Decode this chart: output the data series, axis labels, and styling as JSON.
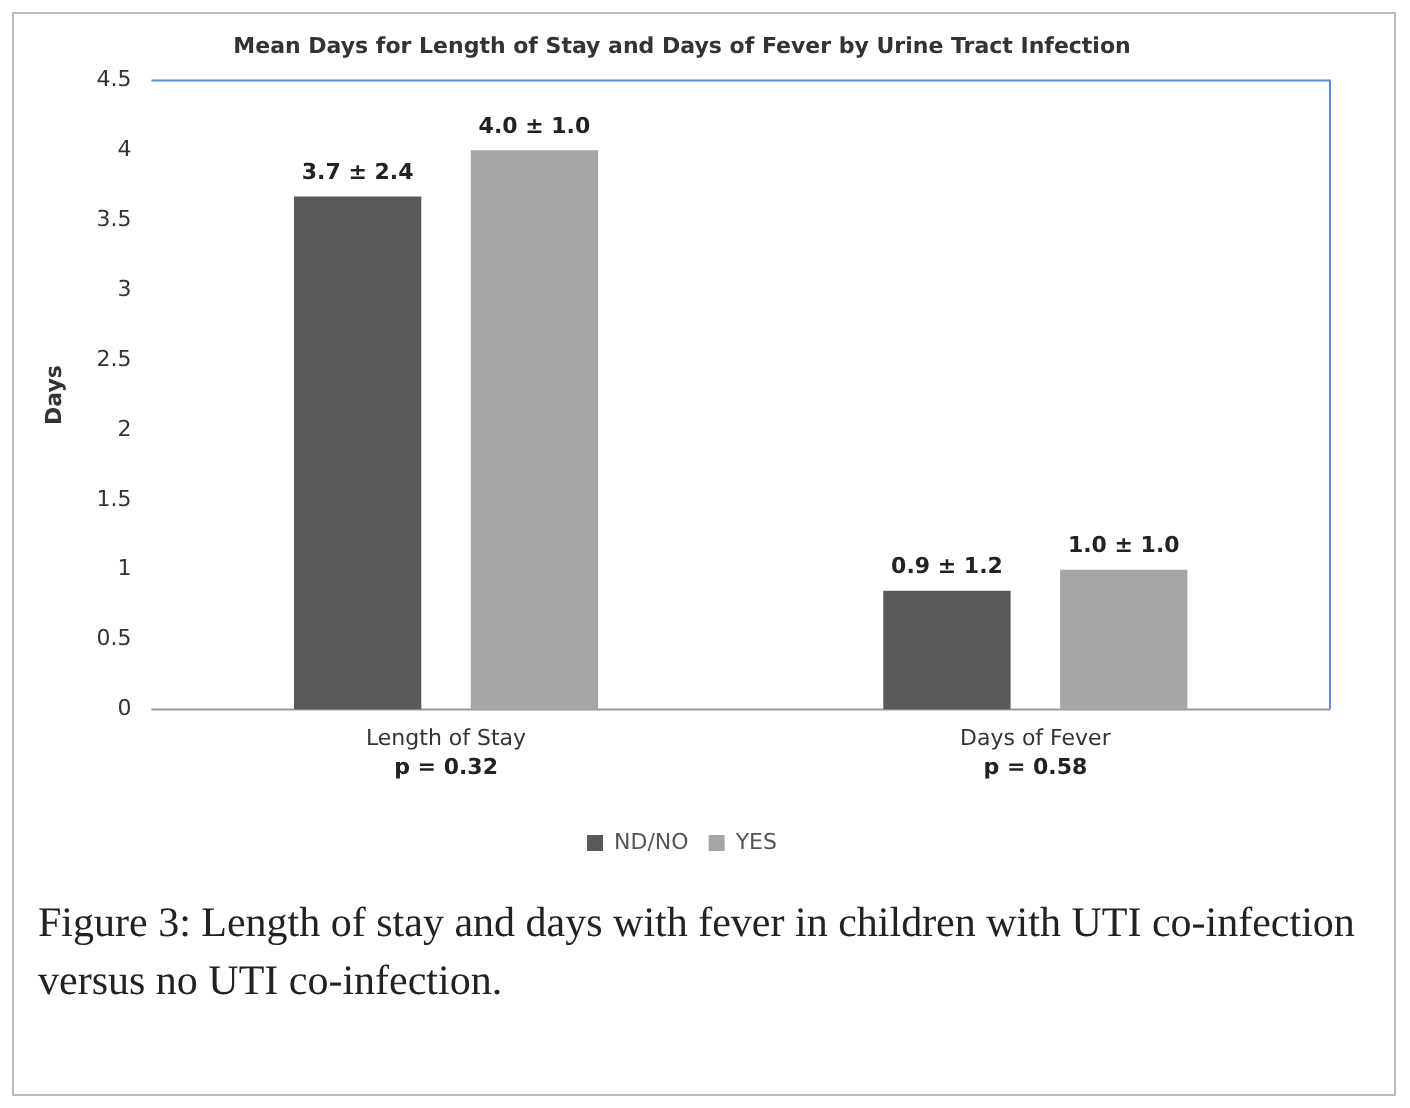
{
  "chart_data": {
    "type": "bar",
    "title": "Mean Days for Length of Stay and Days of Fever by Urine Tract Infection",
    "ylabel": "Days",
    "categories": [
      "Length of Stay",
      "Days of Fever"
    ],
    "series": [
      {
        "name": "ND/NO",
        "color": "#595959",
        "values": [
          3.67,
          0.85
        ],
        "value_labels": [
          "3.7 ± 2.4",
          "0.9 ± 1.2"
        ]
      },
      {
        "name": "YES",
        "color": "#a6a6a6",
        "values": [
          4.0,
          1.0
        ],
        "value_labels": [
          "4.0 ± 1.0",
          "1.0 ± 1.0"
        ]
      }
    ],
    "ylim": [
      0,
      4.5
    ],
    "yticks": [
      0,
      0.5,
      1,
      1.5,
      2,
      2.5,
      3,
      3.5,
      4,
      4.5
    ],
    "grid": false,
    "legend": "bottom",
    "annotations": [
      "p = 0.32",
      "p = 0.58",
      "Figure 3: Length of stay and days with fever in children with UTI co-infection versus no UTI co-infection."
    ]
  }
}
